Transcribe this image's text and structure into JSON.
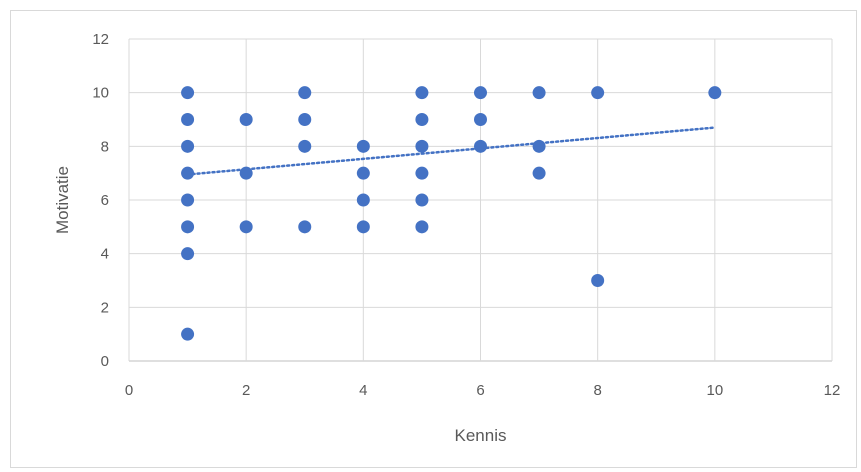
{
  "chart_data": {
    "type": "scatter",
    "title": "",
    "xlabel": "Kennis",
    "ylabel": "Motivatie",
    "xlim": [
      0,
      12
    ],
    "ylim": [
      0,
      12
    ],
    "x_ticks": [
      "0",
      "2",
      "4",
      "6",
      "8",
      "10",
      "12"
    ],
    "y_ticks": [
      "0",
      "2",
      "4",
      "6",
      "8",
      "10",
      "12"
    ],
    "grid": true,
    "legend": "none",
    "marker_color": "#4472c4",
    "trendline": {
      "type": "linear",
      "style": "dotted",
      "color": "#4472c4",
      "x_range": [
        1,
        10
      ],
      "y_at_start": 6.95,
      "y_at_end": 8.7
    },
    "points": [
      [
        1,
        10
      ],
      [
        1,
        9
      ],
      [
        1,
        8
      ],
      [
        1,
        7
      ],
      [
        1,
        6
      ],
      [
        1,
        5
      ],
      [
        1,
        4
      ],
      [
        1,
        1
      ],
      [
        2,
        9
      ],
      [
        2,
        7
      ],
      [
        2,
        5
      ],
      [
        3,
        10
      ],
      [
        3,
        9
      ],
      [
        3,
        8
      ],
      [
        3,
        5
      ],
      [
        4,
        8
      ],
      [
        4,
        7
      ],
      [
        4,
        6
      ],
      [
        4,
        5
      ],
      [
        5,
        10
      ],
      [
        5,
        9
      ],
      [
        5,
        8
      ],
      [
        5,
        7
      ],
      [
        5,
        6
      ],
      [
        5,
        5
      ],
      [
        6,
        10
      ],
      [
        6,
        9
      ],
      [
        6,
        8
      ],
      [
        7,
        10
      ],
      [
        7,
        8
      ],
      [
        7,
        7
      ],
      [
        8,
        10
      ],
      [
        8,
        3
      ],
      [
        10,
        10
      ]
    ]
  }
}
